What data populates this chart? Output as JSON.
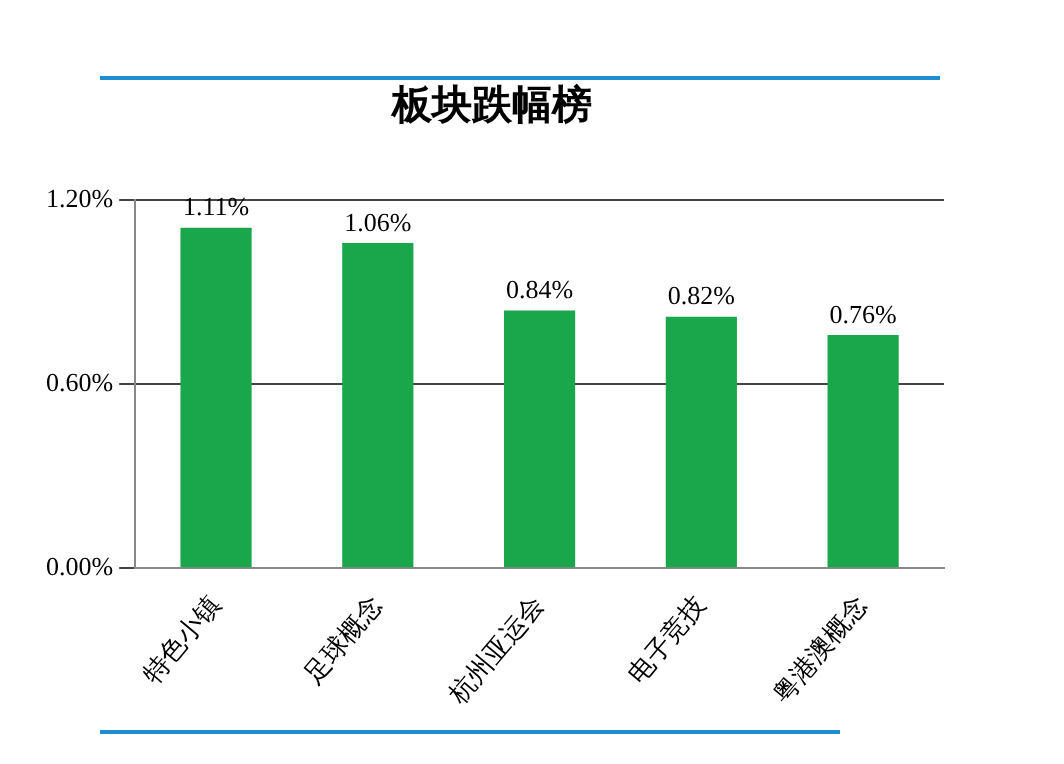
{
  "chart_data": {
    "type": "bar",
    "title": "板块跌幅榜",
    "categories": [
      "特色小镇",
      "足球概念",
      "杭州亚运会",
      "电子竞技",
      "粤港澳概念"
    ],
    "values": [
      1.11,
      1.06,
      0.84,
      0.82,
      0.76
    ],
    "value_labels": [
      "1.11%",
      "1.06%",
      "0.84%",
      "0.82%",
      "0.76%"
    ],
    "color": "#1aa64a",
    "ylim": [
      0,
      1.2
    ],
    "yticks": [
      {
        "value": 0,
        "label": "0.00%"
      },
      {
        "value": 0.6,
        "label": "0.60%"
      },
      {
        "value": 1.2,
        "label": "1.20%"
      }
    ],
    "grid": "y",
    "legend": false
  }
}
